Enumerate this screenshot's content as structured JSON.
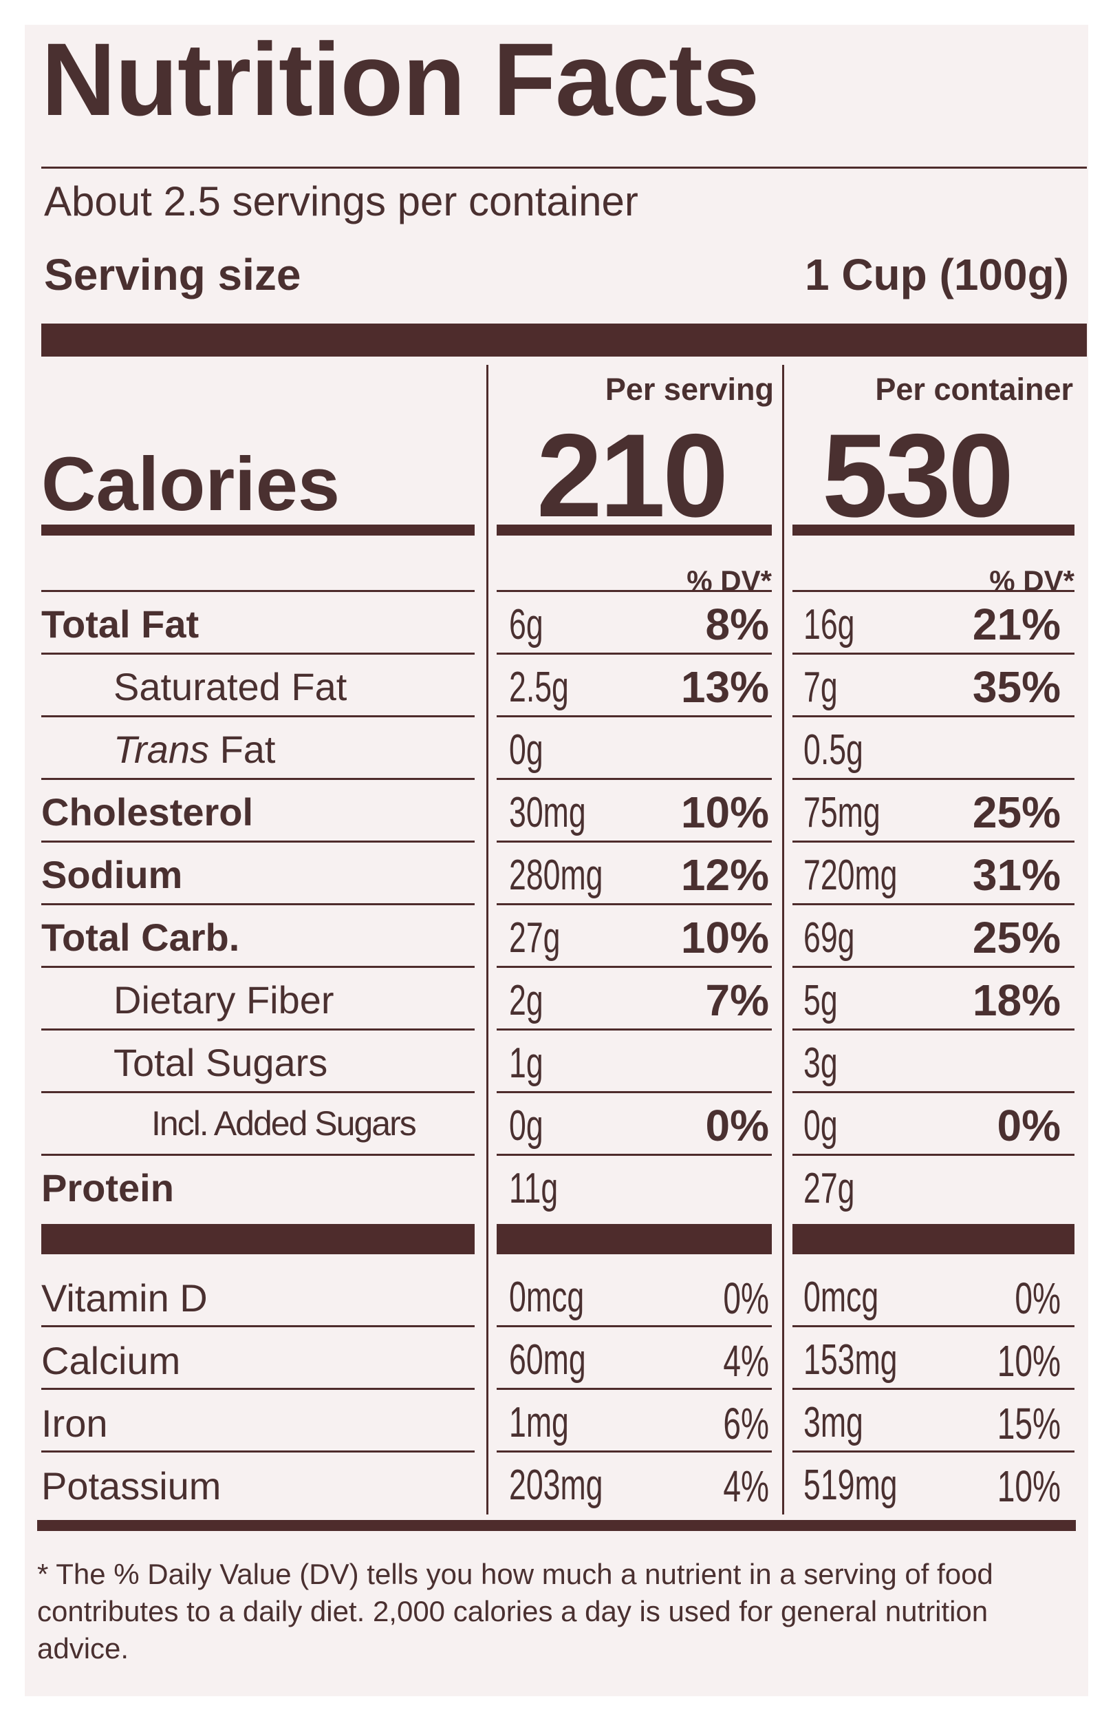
{
  "label": {
    "title": "Nutrition Facts",
    "servings_per_container": "About 2.5 servings per container",
    "serving_size_label": "Serving size",
    "serving_size_value": "1 Cup (100g)",
    "per_serving_label": "Per serving",
    "per_container_label": "Per container",
    "calories_label": "Calories",
    "calories_per_serving": "210",
    "calories_per_container": "530",
    "dv_header": "% DV*",
    "nutrients": [
      {
        "name": "Total Fat",
        "serving_amount": "6g",
        "serving_dv": "8%",
        "container_amount": "16g",
        "container_dv": "21%"
      },
      {
        "name": "Saturated Fat",
        "serving_amount": "2.5g",
        "serving_dv": "13%",
        "container_amount": "7g",
        "container_dv": "35%"
      },
      {
        "name_prefix": "Trans",
        "name": "Fat",
        "serving_amount": "0g",
        "serving_dv": "",
        "container_amount": "0.5g",
        "container_dv": ""
      },
      {
        "name": "Cholesterol",
        "serving_amount": "30mg",
        "serving_dv": "10%",
        "container_amount": "75mg",
        "container_dv": "25%"
      },
      {
        "name": "Sodium",
        "serving_amount": "280mg",
        "serving_dv": "12%",
        "container_amount": "720mg",
        "container_dv": "31%"
      },
      {
        "name": "Total Carb.",
        "serving_amount": "27g",
        "serving_dv": "10%",
        "container_amount": "69g",
        "container_dv": "25%"
      },
      {
        "name": "Dietary Fiber",
        "serving_amount": "2g",
        "serving_dv": "7%",
        "container_amount": "5g",
        "container_dv": "18%"
      },
      {
        "name": "Total Sugars",
        "serving_amount": "1g",
        "serving_dv": "",
        "container_amount": "3g",
        "container_dv": ""
      },
      {
        "name": "Incl. Added Sugars",
        "serving_amount": "0g",
        "serving_dv": "0%",
        "container_amount": "0g",
        "container_dv": "0%"
      },
      {
        "name": "Protein",
        "serving_amount": "11g",
        "serving_dv": "",
        "container_amount": "27g",
        "container_dv": ""
      }
    ],
    "vitamins": [
      {
        "name": "Vitamin D",
        "serving_amount": "0mcg",
        "serving_dv": "0%",
        "container_amount": "0mcg",
        "container_dv": "0%"
      },
      {
        "name": "Calcium",
        "serving_amount": "60mg",
        "serving_dv": "4%",
        "container_amount": "153mg",
        "container_dv": "10%"
      },
      {
        "name": "Iron",
        "serving_amount": "1mg",
        "serving_dv": "6%",
        "container_amount": "3mg",
        "container_dv": "15%"
      },
      {
        "name": "Potassium",
        "serving_amount": "203mg",
        "serving_dv": "4%",
        "container_amount": "519mg",
        "container_dv": "10%"
      }
    ],
    "footnote": "* The % Daily Value (DV) tells you how much a nutrient in a serving of food contributes to a daily diet. 2,000 calories a day is used for general nutrition advice."
  },
  "colors": {
    "ink": "#4e2c2c",
    "paper": "#f7f1f1"
  }
}
